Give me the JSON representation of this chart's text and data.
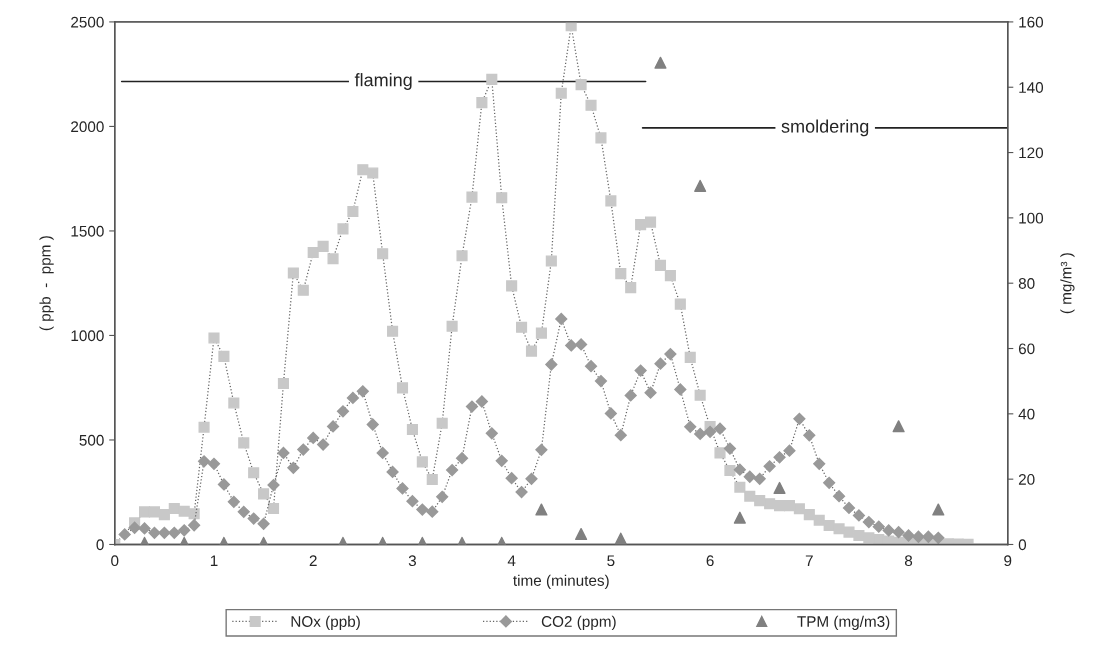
{
  "chart_data": {
    "type": "line",
    "xlabel": "time (minutes)",
    "ylabel": "( ppb  -  ppm )",
    "y2label": "( mg/m³ )",
    "xlim": [
      0,
      9
    ],
    "xticks": [
      0,
      1,
      2,
      3,
      4,
      5,
      6,
      7,
      8,
      9
    ],
    "ylim": [
      0,
      2500
    ],
    "yticks": [
      0,
      500,
      1000,
      1500,
      2000,
      2500
    ],
    "y2lim": [
      0,
      160
    ],
    "y2ticks": [
      0,
      20,
      40,
      60,
      80,
      100,
      120,
      140,
      160
    ],
    "grid": false,
    "legend": "bottom",
    "line_style": "dotted",
    "annotations": [
      {
        "text": "flaming",
        "x": 2.71,
        "y": 2215
      },
      {
        "text": "smoldering",
        "x": 7.16,
        "y": 1993
      }
    ],
    "series": [
      {
        "type": "line",
        "marker": "none",
        "line_style": "solid",
        "color": "#222222",
        "x": [
          0.07,
          5.35
        ],
        "values": [
          2215,
          2215
        ]
      },
      {
        "type": "line",
        "marker": "none",
        "line_style": "solid",
        "color": "#222222",
        "x": [
          5.32,
          9
        ],
        "values": [
          1993,
          1993
        ]
      },
      {
        "name": "NOx (ppb)",
        "marker": "square",
        "color": "#c8c8c8",
        "x": [
          0,
          0.2,
          0.3,
          0.4,
          0.5,
          0.6,
          0.7,
          0.8,
          0.9,
          1.0,
          1.1,
          1.2,
          1.3,
          1.4,
          1.5,
          1.6,
          1.7,
          1.8,
          1.9,
          2.0,
          2.1,
          2.2,
          2.3,
          2.4,
          2.5,
          2.6,
          2.7,
          2.8,
          2.9,
          3.0,
          3.1,
          3.2,
          3.3,
          3.4,
          3.5,
          3.6,
          3.7,
          3.8,
          3.9,
          4.0,
          4.1,
          4.2,
          4.3,
          4.4,
          4.5,
          4.6,
          4.7,
          4.8,
          4.9,
          5.0,
          5.1,
          5.2,
          5.3,
          5.4,
          5.5,
          5.6,
          5.7,
          5.8,
          5.9,
          6.0,
          6.1,
          6.2,
          6.3,
          6.4,
          6.5,
          6.6,
          6.7,
          6.8,
          6.9,
          7.0,
          7.1,
          7.2,
          7.3,
          7.4,
          7.5,
          7.6,
          7.7,
          7.8,
          7.9,
          8.0,
          8.1,
          8.2,
          8.3,
          8.4,
          8.5,
          8.6
        ],
        "values": [
          0,
          104,
          156,
          156,
          143,
          172,
          159,
          147,
          561,
          988,
          900,
          677,
          486,
          343,
          242,
          172,
          770,
          1299,
          1216,
          1397,
          1426,
          1367,
          1510,
          1593,
          1793,
          1777,
          1391,
          1020,
          749,
          550,
          395,
          311,
          580,
          1044,
          1381,
          1662,
          2114,
          2225,
          1659,
          1237,
          1039,
          925,
          1011,
          1356,
          2159,
          2482,
          2200,
          2101,
          1945,
          1644,
          1296,
          1229,
          1530,
          1542,
          1335,
          1286,
          1150,
          895,
          714,
          564,
          438,
          354,
          274,
          231,
          210,
          195,
          186,
          186,
          171,
          143,
          116,
          91,
          75,
          59,
          43,
          32,
          24,
          16,
          10,
          8,
          6,
          5,
          4,
          3,
          2,
          1
        ]
      },
      {
        "name": "CO2 (ppm)",
        "marker": "diamond",
        "color": "#999999",
        "x": [
          0.1,
          0.2,
          0.3,
          0.4,
          0.5,
          0.6,
          0.7,
          0.8,
          0.9,
          1.0,
          1.1,
          1.2,
          1.3,
          1.4,
          1.5,
          1.6,
          1.7,
          1.8,
          1.9,
          2.0,
          2.1,
          2.2,
          2.3,
          2.4,
          2.5,
          2.6,
          2.7,
          2.8,
          2.9,
          3.0,
          3.1,
          3.2,
          3.3,
          3.4,
          3.5,
          3.6,
          3.7,
          3.8,
          3.9,
          4.0,
          4.1,
          4.2,
          4.3,
          4.4,
          4.5,
          4.6,
          4.7,
          4.8,
          4.9,
          5.0,
          5.1,
          5.2,
          5.3,
          5.4,
          5.5,
          5.6,
          5.7,
          5.8,
          5.9,
          6.0,
          6.1,
          6.2,
          6.3,
          6.4,
          6.5,
          6.6,
          6.7,
          6.8,
          6.9,
          7.0,
          7.1,
          7.2,
          7.3,
          7.4,
          7.5,
          7.6,
          7.7,
          7.8,
          7.9,
          8.0,
          8.1,
          8.2,
          8.3
        ],
        "values": [
          48,
          80,
          77,
          56,
          56,
          56,
          68,
          92,
          398,
          386,
          287,
          204,
          156,
          124,
          99,
          284,
          438,
          367,
          454,
          510,
          478,
          565,
          637,
          701,
          733,
          574,
          438,
          347,
          268,
          207,
          167,
          157,
          228,
          356,
          413,
          660,
          684,
          532,
          400,
          317,
          251,
          314,
          453,
          861,
          1079,
          952,
          957,
          853,
          782,
          627,
          523,
          713,
          832,
          726,
          865,
          911,
          742,
          563,
          529,
          539,
          554,
          459,
          358,
          324,
          314,
          374,
          417,
          449,
          601,
          522,
          386,
          295,
          231,
          175,
          139,
          107,
          85,
          67,
          59,
          43,
          37,
          37,
          32
        ]
      },
      {
        "name": "TPM (mg/m3)",
        "type": "scatter",
        "marker": "triangle",
        "color": "#808080",
        "axis": "y2",
        "x": [
          0.3,
          0.7,
          1.1,
          1.5,
          2.3,
          2.7,
          3.1,
          3.5,
          3.9,
          4.3,
          4.7,
          5.1,
          5.5,
          5.9,
          6.3,
          6.7,
          7.9,
          8.3
        ],
        "values": [
          0.5,
          0.5,
          0.5,
          0.5,
          0.5,
          0.5,
          0.5,
          0.5,
          0.5,
          10.7,
          3.2,
          1.8,
          147.5,
          109.8,
          8.2,
          17.3,
          36.2,
          10.7
        ]
      }
    ]
  }
}
